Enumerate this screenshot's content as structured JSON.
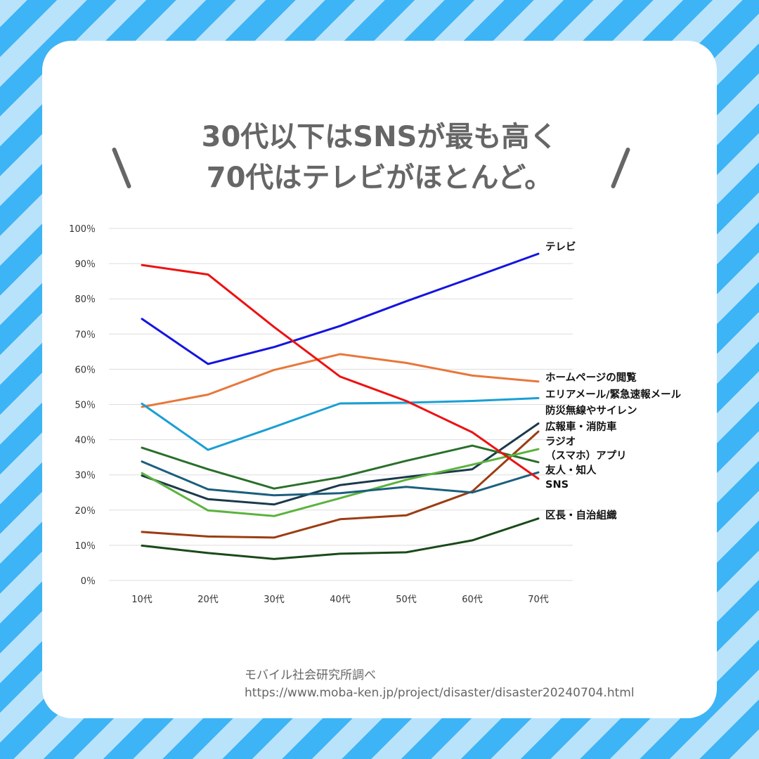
{
  "title": {
    "line1": "30代以下はSNSが最も高く",
    "line2": "70代はテレビがほとんど。"
  },
  "source": {
    "line1": "モバイル社会研究所調べ",
    "line2": "https://www.moba-ken.jp/project/disaster/disaster20240704.html"
  },
  "chart_data": {
    "type": "line",
    "x": [
      "10代",
      "20代",
      "30代",
      "40代",
      "50代",
      "60代",
      "70代"
    ],
    "ylim": [
      0,
      100
    ],
    "yticks": [
      0,
      10,
      20,
      30,
      40,
      50,
      60,
      70,
      80,
      90,
      100
    ],
    "ytick_labels": [
      "0％",
      "10％",
      "20％",
      "30％",
      "40％",
      "50％",
      "60％",
      "70％",
      "80％",
      "90％",
      "100％"
    ],
    "grid": true,
    "legend": "inline-right",
    "series": [
      {
        "name": "テレビ",
        "color": "#1414e0",
        "values": [
          74.3,
          61.5,
          66.3,
          72.3,
          79.3,
          86.0,
          92.8
        ]
      },
      {
        "name": "ホームページの閲覧",
        "color": "#e8773a",
        "values": [
          49.3,
          52.8,
          59.8,
          64.3,
          61.8,
          58.2,
          56.5
        ]
      },
      {
        "name": "エリアメール/緊急速報メール",
        "color": "#1a9fd4",
        "values": [
          50.2,
          37.1,
          43.6,
          50.3,
          50.5,
          51.0,
          51.8
        ]
      },
      {
        "name": "防災無線やサイレン",
        "color": "#1b3a4b",
        "values": [
          29.8,
          23.1,
          21.6,
          27.1,
          29.4,
          31.6,
          44.6
        ]
      },
      {
        "name": "広報車・消防車",
        "color": "#9b3d12",
        "values": [
          13.8,
          12.5,
          12.2,
          17.4,
          18.5,
          25.3,
          42.3
        ]
      },
      {
        "name": "ラジオ",
        "color": "#2a6f2a",
        "values": [
          37.7,
          31.6,
          26.1,
          29.3,
          34.0,
          38.3,
          33.6
        ]
      },
      {
        "name": "（スマホ）アプリ",
        "color": "#5bb33d",
        "values": [
          30.5,
          19.9,
          18.3,
          23.4,
          28.6,
          32.9,
          37.3
        ]
      },
      {
        "name": "友人・知人",
        "color": "#1c5f7d",
        "values": [
          33.8,
          25.9,
          24.2,
          24.8,
          26.6,
          25.0,
          30.7
        ]
      },
      {
        "name": "SNS",
        "color": "#ee1111",
        "values": [
          89.6,
          86.9,
          72.0,
          57.9,
          51.0,
          42.1,
          28.9
        ]
      },
      {
        "name": "区長・自治組織",
        "color": "#1a4a1a",
        "values": [
          9.9,
          7.8,
          6.1,
          7.6,
          8.0,
          11.4,
          17.6
        ]
      }
    ]
  }
}
